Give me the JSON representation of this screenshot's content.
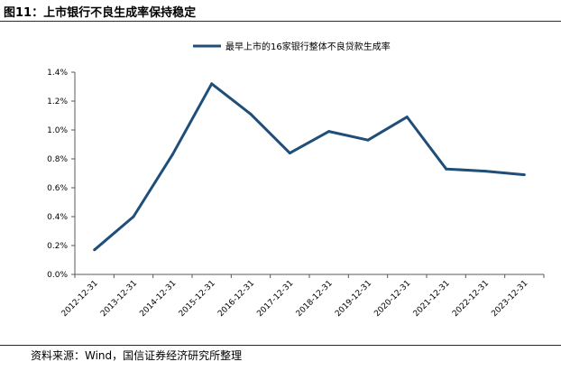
{
  "figure_title": "图11：上市银行不良生成率保持稳定",
  "source_note": "资料来源：Wind，国信证券经济研究所整理",
  "colors": {
    "series": "#1f4e79",
    "axis": "#595959",
    "rule": "#2b2b2b"
  },
  "chart_data": {
    "type": "line",
    "categories": [
      "2012-12-31",
      "2013-12-31",
      "2014-12-31",
      "2015-12-31",
      "2016-12-31",
      "2017-12-31",
      "2018-12-31",
      "2019-12-31",
      "2020-12-31",
      "2021-12-31",
      "2022-12-31",
      "2023-12-31"
    ],
    "series": [
      {
        "name": "最早上市的16家银行整体不良贷款生成率",
        "values": [
          0.17,
          0.4,
          0.83,
          1.32,
          1.11,
          0.84,
          0.99,
          0.93,
          1.09,
          0.73,
          0.715,
          0.69
        ]
      }
    ],
    "ylim": [
      0,
      1.4
    ],
    "yticks": [
      "0.0%",
      "0.2%",
      "0.4%",
      "0.6%",
      "0.8%",
      "1.0%",
      "1.2%",
      "1.4%"
    ],
    "grid": false,
    "legend_position": "top-center",
    "title": "",
    "xlabel": "",
    "ylabel": ""
  }
}
